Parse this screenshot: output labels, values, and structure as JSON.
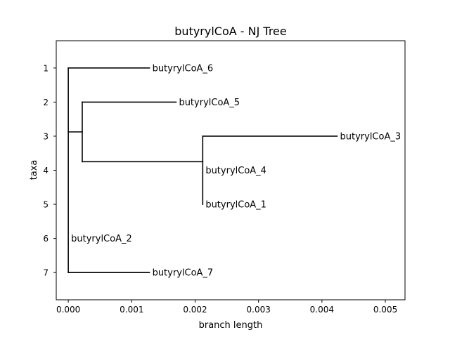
{
  "chart_data": {
    "type": "dendrogram",
    "title": "butyrylCoA - NJ Tree",
    "xlabel": "branch length",
    "ylabel": "taxa",
    "xlim": [
      -0.00019,
      0.00531
    ],
    "ylim": [
      7.8,
      0.2
    ],
    "xticks": [
      {
        "value": 0.0,
        "label": "0.000"
      },
      {
        "value": 0.001,
        "label": "0.001"
      },
      {
        "value": 0.002,
        "label": "0.002"
      },
      {
        "value": 0.003,
        "label": "0.003"
      },
      {
        "value": 0.004,
        "label": "0.004"
      },
      {
        "value": 0.005,
        "label": "0.005"
      }
    ],
    "yticks": [
      {
        "value": 1,
        "label": "1"
      },
      {
        "value": 2,
        "label": "2"
      },
      {
        "value": 3,
        "label": "3"
      },
      {
        "value": 4,
        "label": "4"
      },
      {
        "value": 5,
        "label": "5"
      },
      {
        "value": 6,
        "label": "6"
      },
      {
        "value": 7,
        "label": "7"
      }
    ],
    "leaves": [
      {
        "label": "butyrylCoA_6",
        "x": 0.00128,
        "y": 1
      },
      {
        "label": "butyrylCoA_5",
        "x": 0.0017,
        "y": 2
      },
      {
        "label": "butyrylCoA_3",
        "x": 0.00424,
        "y": 3
      },
      {
        "label": "butyrylCoA_4",
        "x": 0.00212,
        "y": 4
      },
      {
        "label": "butyrylCoA_1",
        "x": 0.00212,
        "y": 5
      },
      {
        "label": "butyrylCoA_2",
        "x": 0.0,
        "y": 6
      },
      {
        "label": "butyrylCoA_7",
        "x": 0.00128,
        "y": 7
      }
    ],
    "branches": [
      {
        "x1": 0.0,
        "y1": 1,
        "x2": 0.00128,
        "y2": 1
      },
      {
        "x1": 0.0,
        "y1": 1,
        "x2": 0.0,
        "y2": 7
      },
      {
        "x1": 0.0,
        "y1": 7,
        "x2": 0.00128,
        "y2": 7
      },
      {
        "x1": 0.0,
        "y1": 2.875,
        "x2": 0.00022,
        "y2": 2.875
      },
      {
        "x1": 0.00022,
        "y1": 2,
        "x2": 0.00022,
        "y2": 3.75
      },
      {
        "x1": 0.00022,
        "y1": 2,
        "x2": 0.0017,
        "y2": 2
      },
      {
        "x1": 0.00022,
        "y1": 3.75,
        "x2": 0.00212,
        "y2": 3.75
      },
      {
        "x1": 0.00212,
        "y1": 3,
        "x2": 0.00212,
        "y2": 5
      },
      {
        "x1": 0.00212,
        "y1": 3,
        "x2": 0.00424,
        "y2": 3
      }
    ]
  }
}
